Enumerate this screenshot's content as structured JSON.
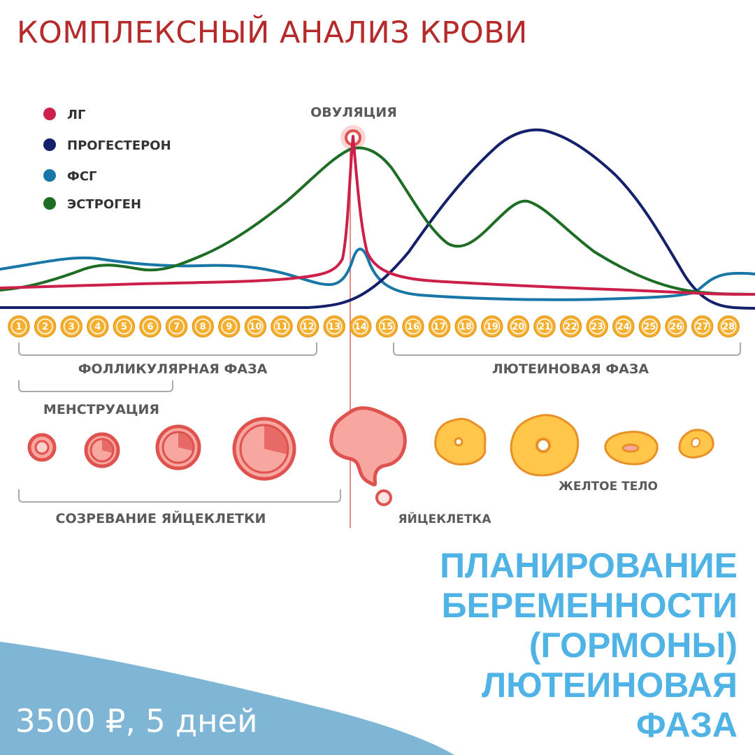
{
  "title": "КОМПЛЕКСНЫЙ АНАЛИЗ КРОВИ",
  "legend": [
    {
      "label": "ЛГ",
      "color": "#cc1f4a"
    },
    {
      "label": "ПРОГЕСТЕРОН",
      "color": "#14206b"
    },
    {
      "label": "ФСГ",
      "color": "#1877a6"
    },
    {
      "label": "ЭСТРОГЕН",
      "color": "#1e6d24"
    }
  ],
  "ovulation_label": "ОВУЛЯЦИЯ",
  "days": [
    "1",
    "2",
    "3",
    "4",
    "5",
    "6",
    "7",
    "8",
    "9",
    "10",
    "11",
    "12",
    "13",
    "14",
    "15",
    "16",
    "17",
    "18",
    "19",
    "20",
    "21",
    "22",
    "23",
    "24",
    "25",
    "26",
    "27",
    "28"
  ],
  "phases": {
    "follicular": "ФОЛЛИКУЛЯРНАЯ ФАЗА",
    "luteal": "ЛЮТЕИНОВАЯ ФАЗА",
    "menstruation": "МЕНСТРУАЦИЯ",
    "egg_maturation": "СОЗРЕВАНИЕ ЯЙЦЕКЛЕТКИ",
    "egg": "ЯЙЦЕКЛЕТКА",
    "corpus_luteum": "ЖЕЛТОЕ ТЕЛО"
  },
  "promo": {
    "lines": [
      "ПЛАНИРОВАНИЕ",
      "БЕРЕМЕННОСТИ",
      "(ГОРМОНЫ)",
      "ЛЮТЕИНОВАЯ",
      "ФАЗА"
    ]
  },
  "price": "3500 ₽, 5 дней",
  "colors": {
    "title": "#b52a2a",
    "promo": "#4fb3e6",
    "wave": "#7fb6d6",
    "day_circle": "#f5b031",
    "follicle_fill": "#f7a7a0",
    "follicle_stroke": "#e0524e",
    "luteum_fill": "#ffc64a",
    "luteum_stroke": "#e98f28"
  }
}
